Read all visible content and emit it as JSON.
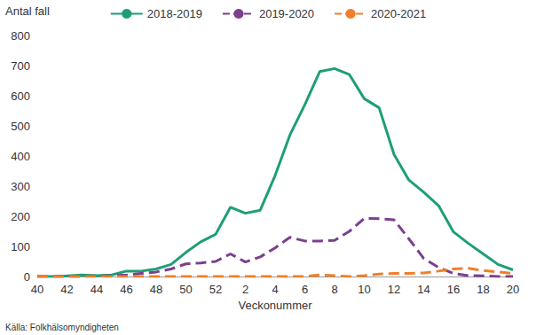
{
  "chart_data": {
    "type": "line",
    "y_label": "Antal fall",
    "x_label": "Veckonummer",
    "annotations": [
      "Källa: Folkhälsomyndigheten"
    ],
    "categories": [
      "40",
      null,
      "42",
      null,
      "44",
      null,
      "46",
      null,
      "48",
      null,
      "50",
      null,
      "52",
      null,
      "2",
      null,
      "4",
      null,
      "6",
      null,
      "8",
      null,
      "10",
      null,
      "12",
      null,
      "14",
      null,
      "16",
      null,
      "18",
      null,
      "20"
    ],
    "series": [
      {
        "name": "2018-2019",
        "color": "#1e9e78",
        "line_style": "solid",
        "values": [
          0,
          0,
          2,
          5,
          3,
          5,
          18,
          18,
          25,
          40,
          80,
          115,
          140,
          230,
          210,
          220,
          335,
          470,
          570,
          680,
          690,
          670,
          590,
          560,
          405,
          320,
          280,
          235,
          148,
          110,
          75,
          40,
          22
        ]
      },
      {
        "name": "2019-2020",
        "color": "#7b3f8e",
        "line_style": "dashed",
        "values": [
          0,
          0,
          0,
          0,
          2,
          3,
          5,
          10,
          15,
          25,
          42,
          45,
          50,
          75,
          48,
          65,
          95,
          130,
          118,
          118,
          120,
          150,
          193,
          192,
          188,
          125,
          60,
          30,
          10,
          3,
          2,
          0,
          0
        ]
      },
      {
        "name": "2020-2021",
        "color": "#f07f2a",
        "line_style": "dashed",
        "values": [
          2,
          0,
          0,
          0,
          0,
          0,
          0,
          0,
          0,
          0,
          0,
          0,
          0,
          0,
          0,
          0,
          0,
          0,
          0,
          5,
          3,
          0,
          3,
          8,
          10,
          10,
          12,
          18,
          25,
          27,
          20,
          15,
          10
        ]
      }
    ],
    "ylim": [
      0,
      800
    ],
    "yticks": [
      0,
      100,
      200,
      300,
      400,
      500,
      600,
      700,
      800
    ],
    "grid": false,
    "legend": "top"
  }
}
